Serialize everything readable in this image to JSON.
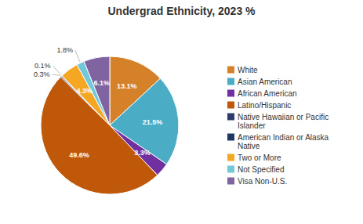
{
  "chart_data": {
    "type": "pie",
    "title": "Undergrad Ethnicity, 2023 %",
    "categories": [
      "White",
      "Asian American",
      "African American",
      "Latino/Hispanic",
      "Native Hawaiian or Pacific\nIslander",
      "American Indian or Alaska\nNative",
      "Two or More",
      "Not Specified",
      "Visa Non-U.S."
    ],
    "values": [
      13.1,
      21.5,
      3.3,
      49.6,
      0.3,
      0.1,
      4.3,
      1.8,
      6.1
    ],
    "value_labels": [
      "13.1%",
      "21.5%",
      "3.3%",
      "49.6%",
      "0.3%",
      "0.1%",
      "4.3%",
      "1.8%",
      "6.1%"
    ],
    "colors": [
      "#D4812A",
      "#4BACC6",
      "#7030A0",
      "#C0580A",
      "#2E3B6E",
      "#1F3864",
      "#F5A623",
      "#70C8D8",
      "#8064A2"
    ],
    "data_labels": true,
    "legend": "right"
  }
}
